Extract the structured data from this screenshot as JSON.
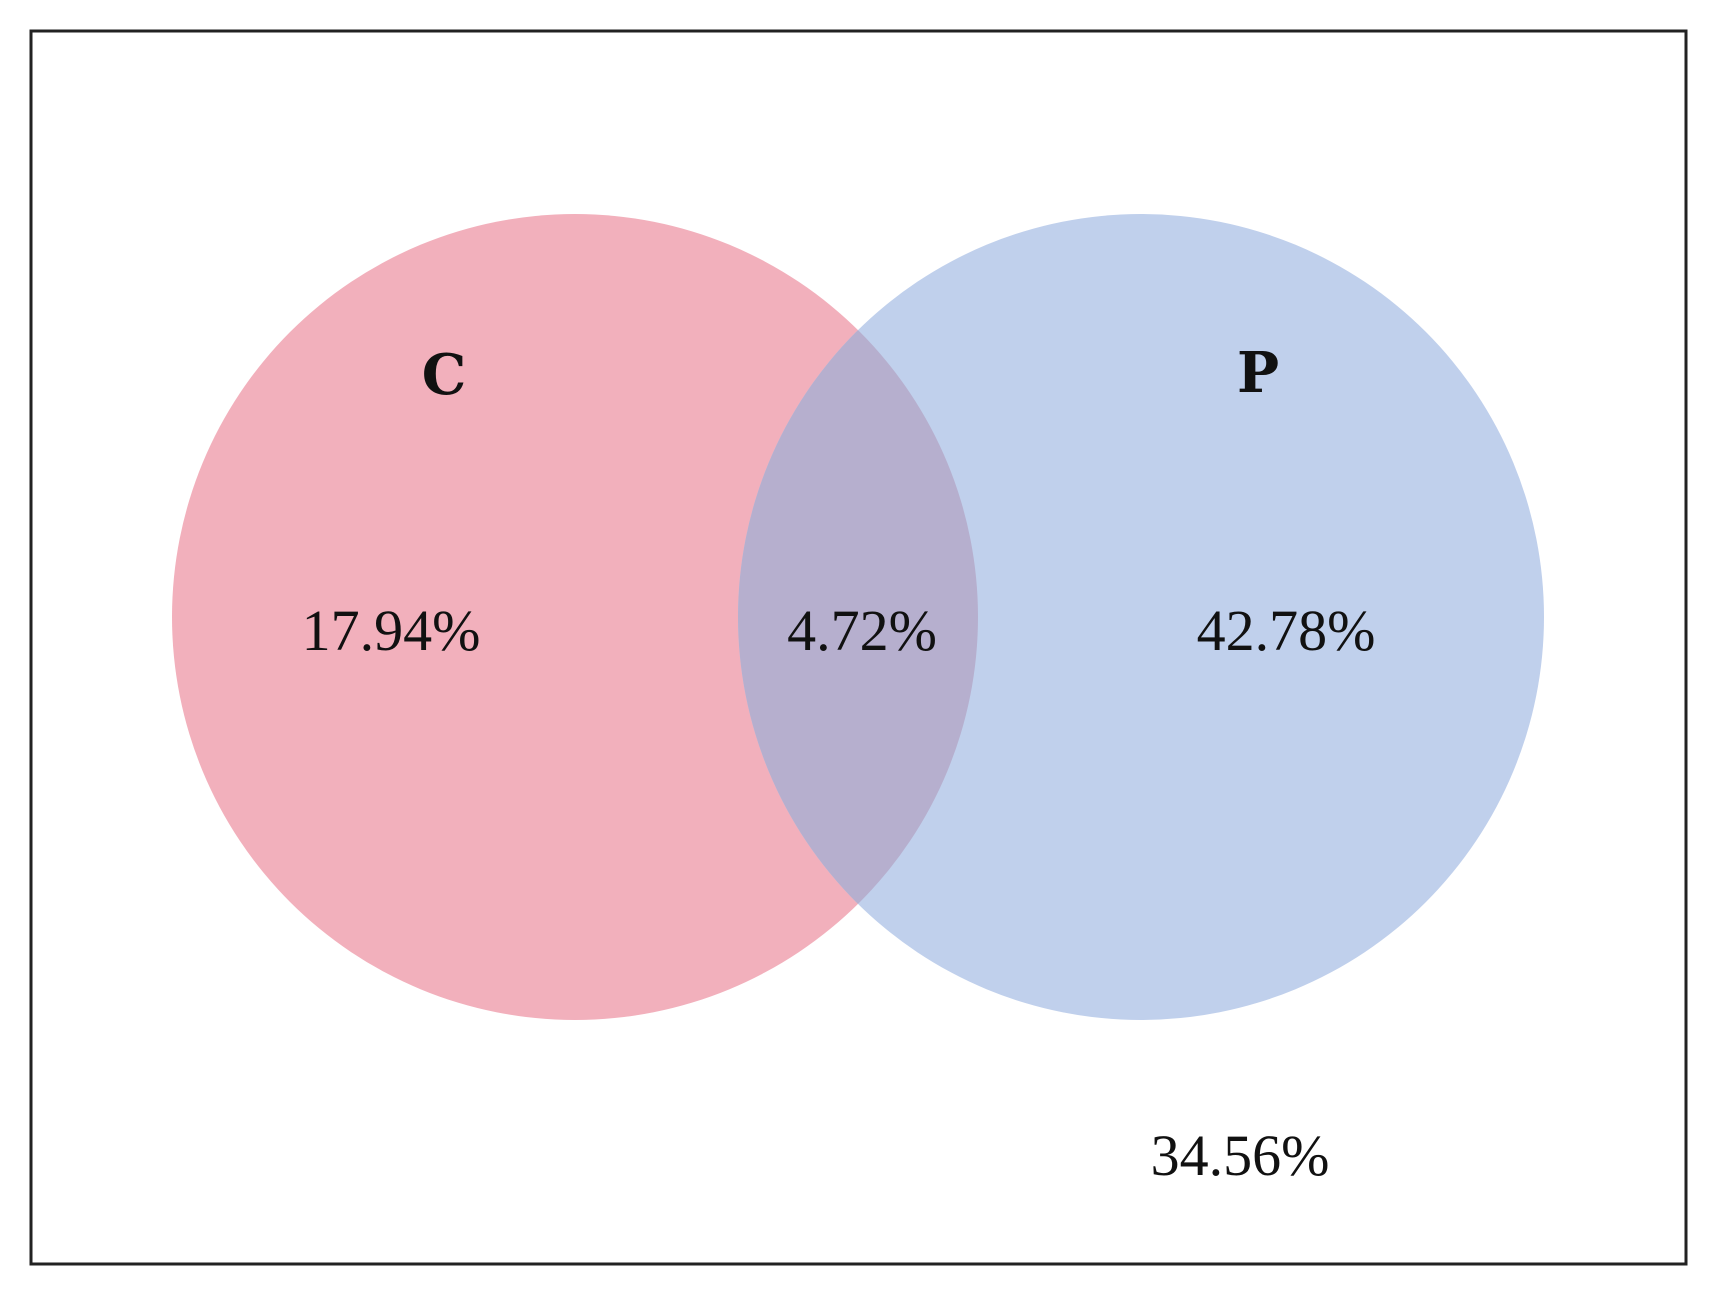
{
  "diagram": {
    "type": "venn",
    "colors": {
      "set_c": "#f2b0bc",
      "set_p": "#c0d0ec",
      "overlap": "#b6afce",
      "frame": "#222222",
      "text": "#111111"
    },
    "sets": [
      {
        "id": "c",
        "label": "C"
      },
      {
        "id": "p",
        "label": "P"
      }
    ],
    "regions": {
      "c_only": "17.94%",
      "intersection": "4.72%",
      "p_only": "42.78%",
      "outside": "34.56%"
    }
  }
}
